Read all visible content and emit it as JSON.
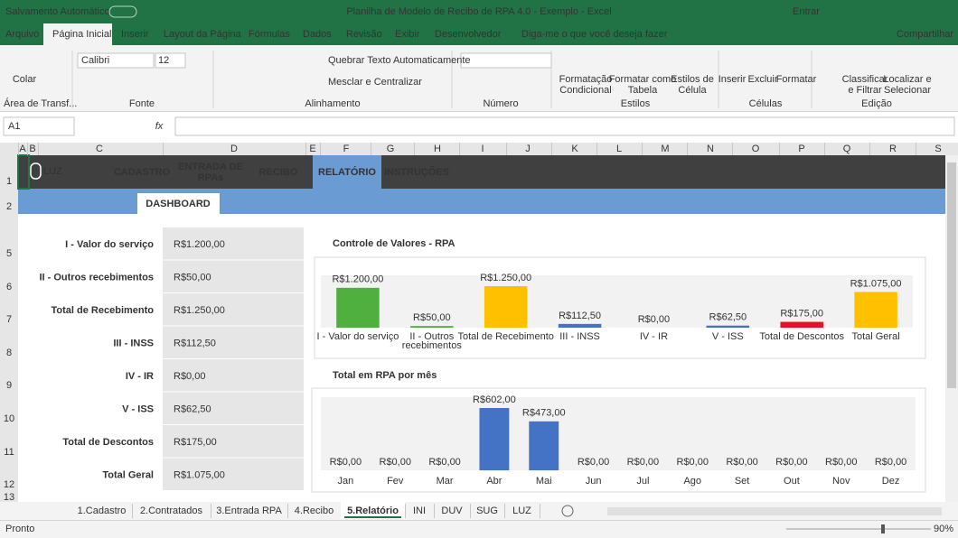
{
  "title_bar": {
    "autosave": "Salvamento Automático",
    "title": "Planilha de Modelo de Recibo de RPA 4.0 - Exemplo  -  Excel",
    "signin": "Entrar"
  },
  "menu": {
    "tabs": [
      "Arquivo",
      "Página Inicial",
      "Inserir",
      "Layout da Página",
      "Fórmulas",
      "Dados",
      "Revisão",
      "Exibir",
      "Desenvolvedor"
    ],
    "active": 1,
    "tell_me": "Diga-me o que você deseja fazer",
    "share": "Compartilhar"
  },
  "ribbon": {
    "groups": [
      "Área de Transf...",
      "Fonte",
      "Alinhamento",
      "Número",
      "Estilos",
      "Células",
      "Edição"
    ],
    "paste": "Colar",
    "font": "Calibri",
    "font_size": "12",
    "wrap_text": "Quebrar Texto Automaticamente",
    "merge": "Mesclar e Centralizar",
    "buttons": [
      [
        "Formatação",
        "Condicional"
      ],
      [
        "Formatar como",
        "Tabela"
      ],
      [
        "Estilos de",
        "Célula"
      ],
      [
        "Inserir"
      ],
      [
        "Excluir"
      ],
      [
        "Formatar"
      ],
      [
        "Classificar",
        "e Filtrar"
      ],
      [
        "Localizar e",
        "Selecionar"
      ]
    ]
  },
  "formula_bar": {
    "name_box": "A1",
    "fx": "fx"
  },
  "columns": [
    "A",
    "B",
    "C",
    "D",
    "E",
    "F",
    "G",
    "H",
    "I",
    "J",
    "K",
    "L",
    "M",
    "N",
    "O",
    "P",
    "Q",
    "R",
    "S"
  ],
  "rows": [
    "1",
    "2",
    "5",
    "6",
    "7",
    "8",
    "9",
    "10",
    "11",
    "12",
    "13"
  ],
  "sheet_nav": {
    "logo": "LUZ",
    "items": [
      [
        "CADASTRO"
      ],
      [
        "ENTRADA DE",
        "RPAs"
      ],
      [
        "RECIBO"
      ],
      [
        "RELATÓRIO"
      ],
      [
        "INSTRUÇÕES"
      ]
    ],
    "active": 3,
    "sub_tab": "DASHBOARD"
  },
  "summary": {
    "rows": [
      [
        "I - Valor do serviço",
        "R$1.200,00"
      ],
      [
        "II - Outros recebimentos",
        "R$50,00"
      ],
      [
        "Total de Recebimento",
        "R$1.250,00"
      ],
      [
        "III - INSS",
        "R$112,50"
      ],
      [
        "IV - IR",
        "R$0,00"
      ],
      [
        "V - ISS",
        "R$62,50"
      ],
      [
        "Total de Descontos",
        "R$175,00"
      ],
      [
        "Total Geral",
        "R$1.075,00"
      ]
    ]
  },
  "chart_data": [
    {
      "type": "bar",
      "title": "Controle de Valores - RPA",
      "categories": [
        "I - Valor do serviço",
        "II - Outros recebimentos",
        "Total de Recebimento",
        "III - INSS",
        "IV - IR",
        "V - ISS",
        "Total de Descontos",
        "Total Geral"
      ],
      "values": [
        1200,
        50,
        1250,
        112.5,
        0,
        62.5,
        175,
        1075
      ],
      "value_labels": [
        "R$1.200,00",
        "R$50,00",
        "R$1.250,00",
        "R$112,50",
        "R$0,00",
        "R$62,50",
        "R$175,00",
        "R$1.075,00"
      ],
      "colors": [
        "#4fb03f",
        "#4fb03f",
        "#ffc000",
        "#4472c4",
        "#4472c4",
        "#4472c4",
        "#e81123",
        "#ffc000"
      ]
    },
    {
      "type": "bar",
      "title": "Total em RPA por mês",
      "categories": [
        "Jan",
        "Fev",
        "Mar",
        "Abr",
        "Mai",
        "Jun",
        "Jul",
        "Ago",
        "Set",
        "Out",
        "Nov",
        "Dez"
      ],
      "values": [
        0,
        0,
        0,
        602,
        473,
        0,
        0,
        0,
        0,
        0,
        0,
        0
      ],
      "value_labels": [
        "R$0,00",
        "R$0,00",
        "R$0,00",
        "R$602,00",
        "R$473,00",
        "R$0,00",
        "R$0,00",
        "R$0,00",
        "R$0,00",
        "R$0,00",
        "R$0,00",
        "R$0,00"
      ],
      "colors": [
        "#4472c4",
        "#4472c4",
        "#4472c4",
        "#4472c4",
        "#4472c4",
        "#4472c4",
        "#4472c4",
        "#4472c4",
        "#4472c4",
        "#4472c4",
        "#4472c4",
        "#4472c4"
      ]
    }
  ],
  "sheet_tabs": {
    "tabs": [
      "1.Cadastro",
      "2.Contratados",
      "3.Entrada RPA",
      "4.Recibo",
      "5.Relatório",
      "INI",
      "DUV",
      "SUG",
      "LUZ"
    ],
    "active": 4
  },
  "status_bar": {
    "ready": "Pronto",
    "zoom": "90%"
  }
}
